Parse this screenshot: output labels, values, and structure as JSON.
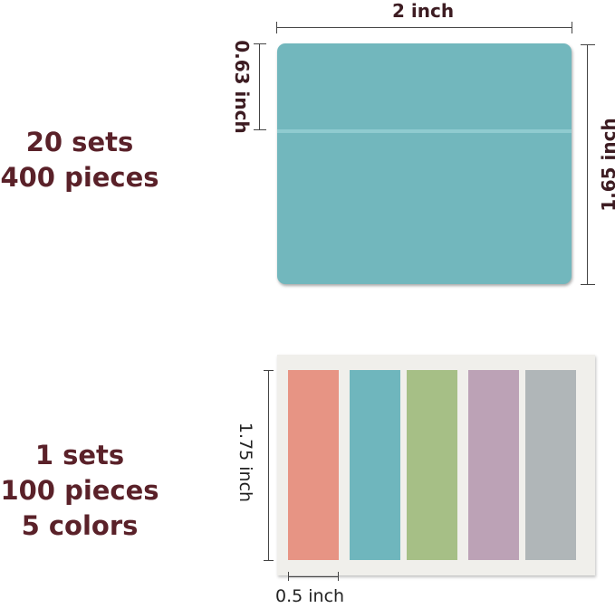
{
  "large_tabs": {
    "sets": "20 sets",
    "pieces": "400 pieces",
    "width": "2 inch",
    "tab_height": "0.63 inch",
    "height": "1.65 inch",
    "color": "#72b7bd"
  },
  "small_tabs": {
    "sets": "1 sets",
    "pieces": "100 pieces",
    "colors": "5 colors",
    "height": "1.75 inch",
    "width": "0.5 inch",
    "strip_colors": [
      "#e79484",
      "#6fb6bd",
      "#a6bf86",
      "#bca2b6",
      "#b0b6b8"
    ]
  }
}
